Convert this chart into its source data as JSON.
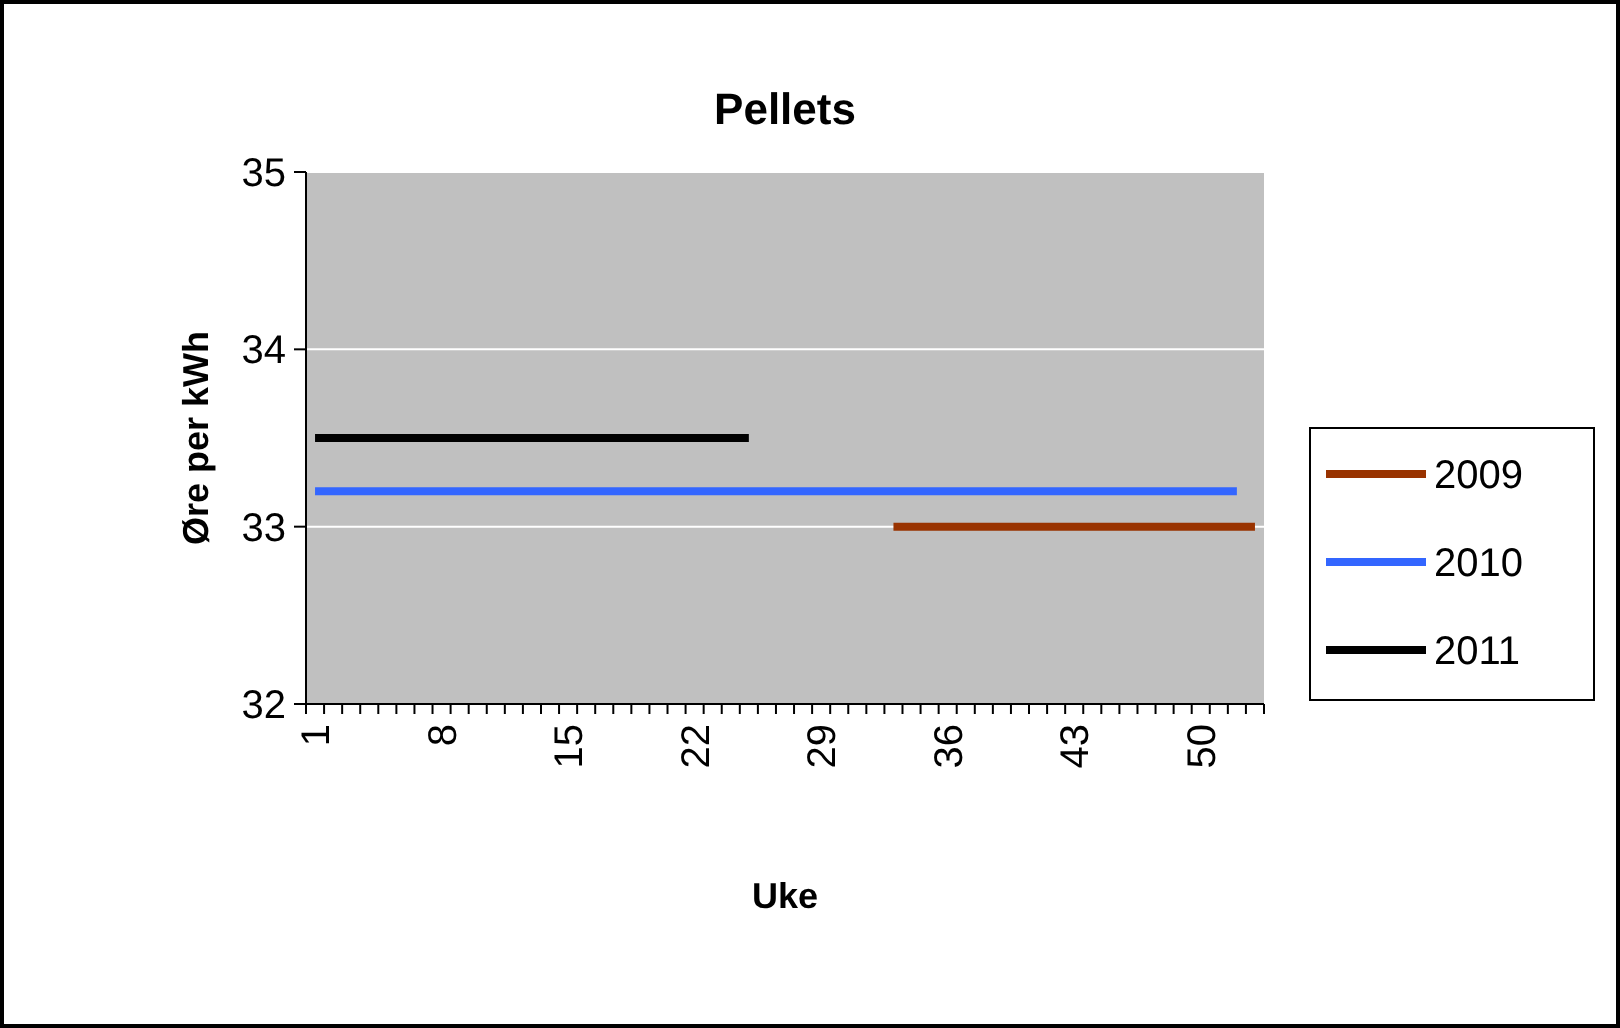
{
  "chart_data": {
    "type": "line",
    "title": "Pellets",
    "xlabel": "Uke",
    "ylabel": "Øre per kWh",
    "categories": [
      "1",
      null,
      null,
      null,
      null,
      null,
      null,
      "8",
      null,
      null,
      null,
      null,
      null,
      null,
      "15",
      null,
      null,
      null,
      null,
      null,
      null,
      "22",
      null,
      null,
      null,
      null,
      null,
      null,
      "29",
      null,
      null,
      null,
      null,
      null,
      null,
      "36",
      null,
      null,
      null,
      null,
      null,
      null,
      "43",
      null,
      null,
      null,
      null,
      null,
      null,
      "50",
      null,
      null,
      null
    ],
    "series": [
      {
        "name": "2009",
        "color": "#993300",
        "values": [
          null,
          null,
          null,
          null,
          null,
          null,
          null,
          null,
          null,
          null,
          null,
          null,
          null,
          null,
          null,
          null,
          null,
          null,
          null,
          null,
          null,
          null,
          null,
          null,
          null,
          null,
          null,
          null,
          null,
          null,
          null,
          null,
          33,
          33,
          33,
          33,
          33,
          33,
          33,
          33,
          33,
          33,
          33,
          33,
          33,
          33,
          33,
          33,
          33,
          33,
          33,
          33,
          33
        ]
      },
      {
        "name": "2010",
        "color": "#3366ff",
        "values": [
          33.2,
          33.2,
          33.2,
          33.2,
          33.2,
          33.2,
          33.2,
          33.2,
          33.2,
          33.2,
          33.2,
          33.2,
          33.2,
          33.2,
          33.2,
          33.2,
          33.2,
          33.2,
          33.2,
          33.2,
          33.2,
          33.2,
          33.2,
          33.2,
          33.2,
          33.2,
          33.2,
          33.2,
          33.2,
          33.2,
          33.2,
          33.2,
          33.2,
          33.2,
          33.2,
          33.2,
          33.2,
          33.2,
          33.2,
          33.2,
          33.2,
          33.2,
          33.2,
          33.2,
          33.2,
          33.2,
          33.2,
          33.2,
          33.2,
          33.2,
          33.2,
          33.2,
          null
        ]
      },
      {
        "name": "2011",
        "color": "#000000",
        "values": [
          33.5,
          33.5,
          33.5,
          33.5,
          33.5,
          33.5,
          33.5,
          33.5,
          33.5,
          33.5,
          33.5,
          33.5,
          33.5,
          33.5,
          33.5,
          33.5,
          33.5,
          33.5,
          33.5,
          33.5,
          33.5,
          33.5,
          33.5,
          33.5,
          33.5,
          null,
          null,
          null,
          null,
          null,
          null,
          null,
          null,
          null,
          null,
          null,
          null,
          null,
          null,
          null,
          null,
          null,
          null,
          null,
          null,
          null,
          null,
          null,
          null,
          null,
          null,
          null,
          null
        ]
      }
    ],
    "ylim": [
      32,
      35
    ],
    "yticks": [
      32,
      33,
      34,
      35
    ],
    "grid": "y",
    "legend": "right",
    "marker": "none",
    "line_style": "solid"
  }
}
